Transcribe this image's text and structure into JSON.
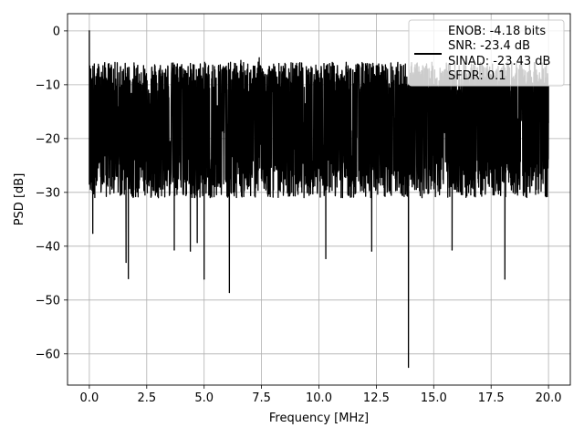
{
  "chart_data": {
    "type": "line",
    "xlabel": "Frequency [MHz]",
    "ylabel": "PSD [dB]",
    "xlim": [
      -0.95,
      20.95
    ],
    "ylim": [
      -65.8,
      3.2
    ],
    "xticks": [
      0.0,
      2.5,
      5.0,
      7.5,
      10.0,
      12.5,
      15.0,
      17.5,
      20.0
    ],
    "xtick_labels": [
      "0.0",
      "2.5",
      "5.0",
      "7.5",
      "10.0",
      "12.5",
      "15.0",
      "17.5",
      "20.0"
    ],
    "yticks": [
      0,
      -10,
      -20,
      -30,
      -40,
      -50,
      -60
    ],
    "ytick_labels": [
      "0",
      "−10",
      "−20",
      "−30",
      "−40",
      "−50",
      "−60"
    ],
    "grid": true,
    "legend_position": "top-right",
    "legend": [
      "ENOB: -4.18 bits",
      "SNR: -23.4 dB",
      "SINAD: -23.43 dB",
      "SFDR: 0.1"
    ],
    "series": [
      {
        "color": "#000000",
        "noise_band": {
          "x_start": 0.0,
          "x_end": 20.0,
          "upper_typical_db": -10,
          "lower_typical_db": -27,
          "median_db": -17
        },
        "points": [
          {
            "x": 0.0,
            "y": 0.0
          },
          {
            "x": 0.02,
            "y": -17.5
          },
          {
            "x": 0.1,
            "y": -24.5
          },
          {
            "x": 0.15,
            "y": -37.6
          },
          {
            "x": 1.6,
            "y": -43.0
          },
          {
            "x": 1.7,
            "y": -46.0
          },
          {
            "x": 3.7,
            "y": -40.7
          },
          {
            "x": 4.4,
            "y": -40.9
          },
          {
            "x": 4.7,
            "y": -39.3
          },
          {
            "x": 5.0,
            "y": -46.1
          },
          {
            "x": 6.1,
            "y": -48.6
          },
          {
            "x": 6.6,
            "y": -5.5
          },
          {
            "x": 7.4,
            "y": -5.0
          },
          {
            "x": 10.3,
            "y": -42.3
          },
          {
            "x": 12.3,
            "y": -40.9
          },
          {
            "x": 13.9,
            "y": -62.5
          },
          {
            "x": 15.8,
            "y": -40.7
          },
          {
            "x": 18.1,
            "y": -46.1
          },
          {
            "x": 20.0,
            "y": -17.0
          }
        ]
      }
    ]
  }
}
